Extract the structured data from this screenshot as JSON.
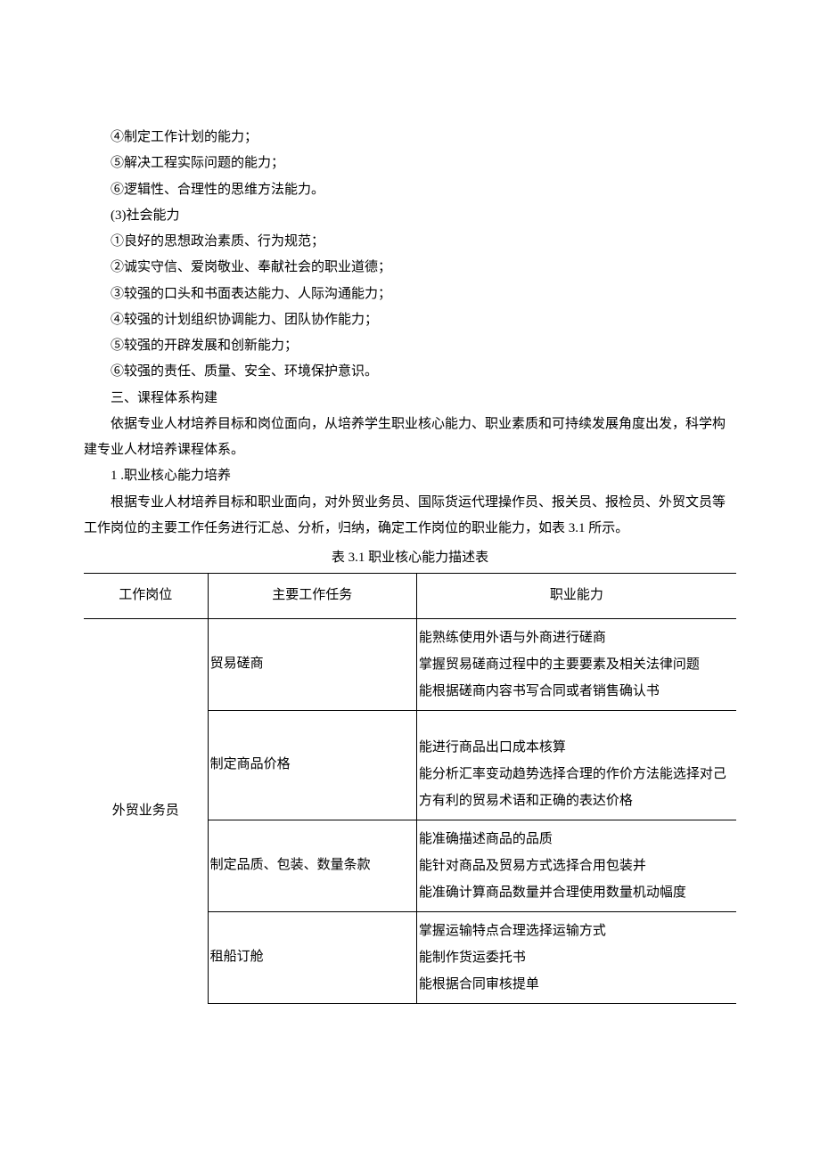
{
  "paragraphs": {
    "p1": "④制定工作计划的能力；",
    "p2": "⑤解决工程实际问题的能力；",
    "p3": "⑥逻辑性、合理性的思维方法能力。",
    "p4": "(3)社会能力",
    "p5": "①良好的思想政治素质、行为规范；",
    "p6": "②诚实守信、爱岗敬业、奉献社会的职业道德；",
    "p7": "③较强的口头和书面表达能力、人际沟通能力；",
    "p8": "④较强的计划组织协调能力、团队协作能力；",
    "p9": "⑤较强的开辟发展和创新能力；",
    "p10": "⑥较强的责任、质量、安全、环境保护意识。",
    "h1": "三、课程体系构建",
    "p11": "依据专业人材培养目标和岗位面向，从培养学生职业核心能力、职业素质和可持续发展角度出发，科学构建专业人材培养课程体系。",
    "h2": "1 .职业核心能力培养",
    "p12": "根据专业人材培养目标和职业面向，对外贸业务员、国际货运代理操作员、报关员、报检员、外贸文员等工作岗位的主要工作任务进行汇总、分析，归纳，确定工作岗位的职业能力，如表 3.1 所示。"
  },
  "table": {
    "caption": "表 3.1 职业核心能力描述表",
    "headers": [
      "工作岗位",
      "主要工作任务",
      "职业能力"
    ],
    "position": "外贸业务员",
    "rows": [
      {
        "task": "贸易磋商",
        "ability": "能熟练使用外语与外商进行磋商\n掌握贸易磋商过程中的主要要素及相关法律问题\n能根据磋商内容书写合同或者销售确认书"
      },
      {
        "task": "制定商品价格",
        "ability": "能进行商品出口成本核算\n能分析汇率变动趋势选择合理的作价方法能选择对己方有利的贸易术语和正确的表达价格"
      },
      {
        "task": "制定品质、包装、数量条款",
        "ability": "能准确描述商品的品质\n能针对商品及贸易方式选择合用包装并\n能准确计算商品数量并合理使用数量机动幅度"
      },
      {
        "task": "租船订舱",
        "ability": "掌握运输特点合理选择运输方式\n能制作货运委托书\n能根据合同审核提单"
      }
    ]
  }
}
